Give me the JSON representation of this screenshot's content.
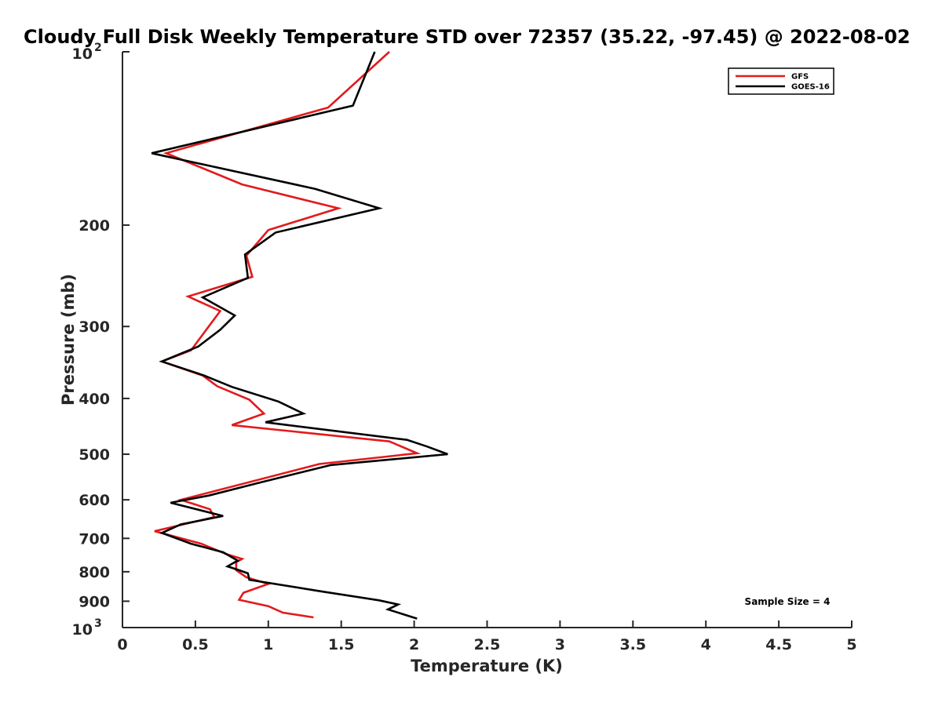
{
  "chart_data": {
    "type": "line",
    "title": "Cloudy Full Disk Weekly Temperature STD over 72357 (35.22, -97.45) @ 2022-08-02",
    "xlabel": "Temperature (K)",
    "ylabel": "Pressure (mb)",
    "xlim": [
      0,
      5
    ],
    "ylim": [
      100,
      1000
    ],
    "y_scale": "log",
    "y_reversed": true,
    "grid": false,
    "legend_position": "top-right",
    "x_ticks": [
      "0",
      "0.5",
      "1",
      "1.5",
      "2",
      "2.5",
      "3",
      "3.5",
      "4",
      "4.5",
      "5"
    ],
    "y_ticks": [
      {
        "value": 100,
        "base": "10",
        "exp": "2"
      },
      {
        "value": 200,
        "label": "200"
      },
      {
        "value": 300,
        "label": "300"
      },
      {
        "value": 400,
        "label": "400"
      },
      {
        "value": 500,
        "label": "500"
      },
      {
        "value": 600,
        "label": "600"
      },
      {
        "value": 700,
        "label": "700"
      },
      {
        "value": 800,
        "label": "800"
      },
      {
        "value": 900,
        "label": "900"
      },
      {
        "value": 1000,
        "base": "10",
        "exp": "3"
      }
    ],
    "annotation": "Sample Size = 4",
    "series": [
      {
        "name": "GFS",
        "color": "#e31a1c",
        "points": [
          [
            1.83,
            100
          ],
          [
            1.41,
            125
          ],
          [
            0.3,
            150
          ],
          [
            0.82,
            170
          ],
          [
            1.48,
            187
          ],
          [
            1.0,
            204
          ],
          [
            0.85,
            226
          ],
          [
            0.89,
            246
          ],
          [
            0.45,
            266
          ],
          [
            0.67,
            282
          ],
          [
            0.47,
            330
          ],
          [
            0.27,
            345
          ],
          [
            0.55,
            365
          ],
          [
            0.65,
            381
          ],
          [
            0.87,
            402
          ],
          [
            0.97,
            425
          ],
          [
            0.75,
            445
          ],
          [
            1.83,
            475
          ],
          [
            2.02,
            498
          ],
          [
            1.35,
            520
          ],
          [
            0.4,
            600
          ],
          [
            0.6,
            623
          ],
          [
            0.63,
            643
          ],
          [
            0.22,
            680
          ],
          [
            0.54,
            715
          ],
          [
            0.71,
            745
          ],
          [
            0.82,
            760
          ],
          [
            0.78,
            770
          ],
          [
            0.78,
            795
          ],
          [
            0.85,
            818
          ],
          [
            1.0,
            840
          ],
          [
            0.83,
            870
          ],
          [
            0.8,
            895
          ],
          [
            1.0,
            918
          ],
          [
            1.1,
            942
          ],
          [
            1.31,
            960
          ]
        ]
      },
      {
        "name": "GOES-16",
        "color": "#000000",
        "points": [
          [
            1.73,
            100
          ],
          [
            1.58,
            124
          ],
          [
            0.2,
            150
          ],
          [
            1.32,
            173
          ],
          [
            1.76,
            187
          ],
          [
            1.05,
            206
          ],
          [
            0.84,
            225
          ],
          [
            0.86,
            247
          ],
          [
            0.55,
            267
          ],
          [
            0.77,
            287
          ],
          [
            0.67,
            304
          ],
          [
            0.52,
            325
          ],
          [
            0.27,
            345
          ],
          [
            0.56,
            365
          ],
          [
            0.75,
            382
          ],
          [
            1.07,
            405
          ],
          [
            1.24,
            425
          ],
          [
            0.98,
            440
          ],
          [
            1.95,
            472
          ],
          [
            2.09,
            485
          ],
          [
            2.23,
            500
          ],
          [
            1.43,
            522
          ],
          [
            0.94,
            560
          ],
          [
            0.59,
            590
          ],
          [
            0.33,
            607
          ],
          [
            0.69,
            640
          ],
          [
            0.4,
            662
          ],
          [
            0.27,
            685
          ],
          [
            0.47,
            715
          ],
          [
            0.69,
            740
          ],
          [
            0.79,
            765
          ],
          [
            0.72,
            783
          ],
          [
            0.8,
            795
          ],
          [
            0.86,
            805
          ],
          [
            0.87,
            826
          ],
          [
            1.36,
            865
          ],
          [
            1.76,
            897
          ],
          [
            1.89,
            912
          ],
          [
            1.82,
            930
          ],
          [
            2.02,
            965
          ]
        ]
      }
    ]
  }
}
